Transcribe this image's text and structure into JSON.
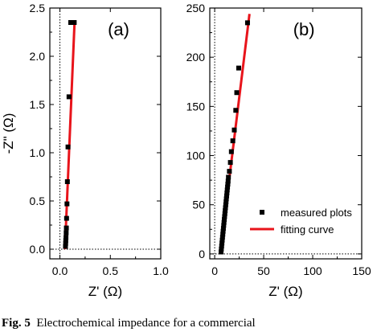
{
  "caption": {
    "label": "Fig. 5",
    "text": "Electrochemical impedance for a commercial"
  },
  "colors": {
    "marker": "#000000",
    "fit": "#e8141b",
    "reference_line": "#000000"
  },
  "chart_data": [
    {
      "type": "scatter",
      "panel_label": "(a)",
      "xlabel": "Z' (Ω)",
      "ylabel": "-Z\" (Ω)",
      "xlim": [
        -0.1,
        1.0
      ],
      "ylim": [
        -0.1,
        2.5
      ],
      "xticks": [
        "0.0",
        "0.5",
        "1.0"
      ],
      "xtick_values": [
        0.0,
        0.5,
        1.0
      ],
      "yticks": [
        "0.0",
        "0.5",
        "1.0",
        "1.5",
        "2.0",
        "2.5"
      ],
      "ytick_values": [
        0.0,
        0.5,
        1.0,
        1.5,
        2.0,
        2.5
      ],
      "reference_lines": {
        "x": 0,
        "y": 0,
        "style": "dotted"
      },
      "series": [
        {
          "kind": "markers",
          "x": [
            0.055,
            0.057,
            0.058,
            0.06,
            0.062,
            0.064,
            0.066,
            0.07,
            0.074,
            0.08,
            0.09,
            0.107,
            0.142
          ],
          "y": [
            0.03,
            0.06,
            0.09,
            0.12,
            0.17,
            0.22,
            0.32,
            0.47,
            0.7,
            1.06,
            1.58,
            2.35,
            2.35
          ]
        },
        {
          "kind": "line",
          "x": [
            0.05,
            0.145
          ],
          "y": [
            0.0,
            2.35
          ]
        }
      ]
    },
    {
      "type": "scatter",
      "panel_label": "(b)",
      "xlabel": "Z' (Ω)",
      "ylabel": "",
      "xlim": [
        -5,
        150
      ],
      "ylim": [
        -5,
        250
      ],
      "xticks": [
        "0",
        "50",
        "100",
        "150"
      ],
      "xtick_values": [
        0,
        50,
        100,
        150
      ],
      "yticks": [
        "0",
        "50",
        "100",
        "150",
        "200",
        "250"
      ],
      "ytick_values": [
        0,
        50,
        100,
        150,
        200,
        250
      ],
      "reference_lines": {
        "x": 0,
        "y": 0,
        "style": "dotted"
      },
      "legend": {
        "position": "lower-right",
        "entries": [
          {
            "label": "measured plots",
            "kind": "marker"
          },
          {
            "label": "fitting curve",
            "kind": "line"
          }
        ]
      },
      "series": [
        {
          "kind": "markers",
          "x": [
            6.5,
            6.8,
            7.1,
            7.4,
            7.7,
            8.0,
            8.3,
            8.6,
            8.9,
            9.2,
            9.5,
            9.8,
            10.1,
            10.4,
            10.7,
            11.0,
            11.3,
            11.6,
            11.9,
            12.2,
            12.5,
            12.8,
            13.1,
            13.4,
            13.7,
            14.0,
            15.0,
            16.0,
            17.0,
            18.5,
            20.0,
            21.5,
            22.5,
            24.5,
            33.5
          ],
          "y": [
            2,
            5,
            8,
            11,
            14,
            17,
            20,
            23,
            26,
            29,
            32,
            35,
            38,
            41,
            44,
            47,
            50,
            53,
            56,
            59,
            62,
            65,
            68,
            71,
            74,
            78,
            84,
            93,
            104,
            115,
            126,
            146,
            164,
            189,
            235
          ]
        },
        {
          "kind": "line",
          "x": [
            5.5,
            35.5
          ],
          "y": [
            0,
            244
          ]
        }
      ]
    }
  ]
}
